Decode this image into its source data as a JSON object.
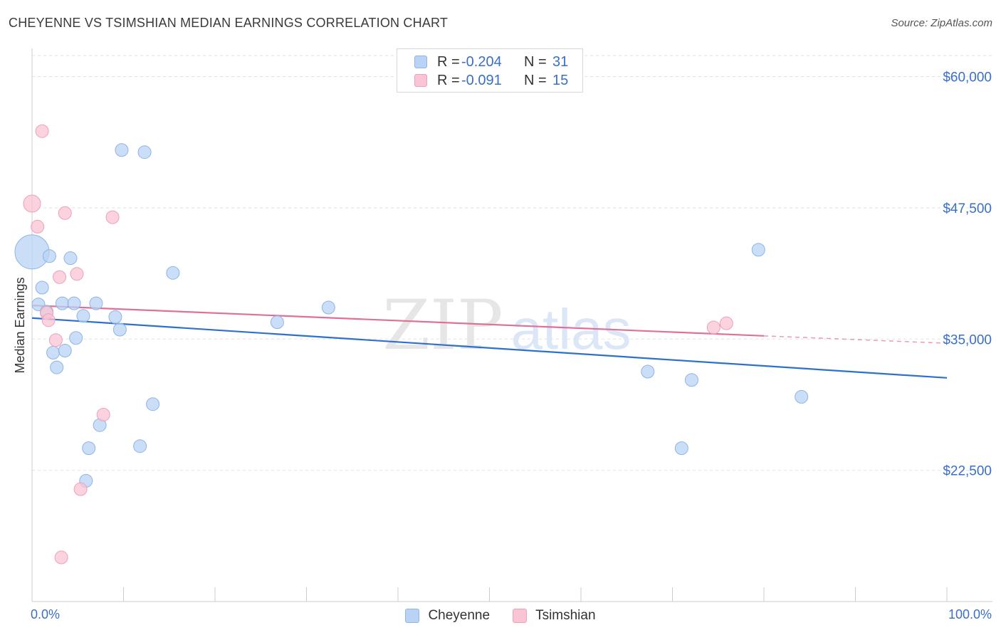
{
  "header": {
    "title": "CHEYENNE VS TSIMSHIAN MEDIAN EARNINGS CORRELATION CHART",
    "source": "Source: ZipAtlas.com"
  },
  "watermark": {
    "zip": "ZIP",
    "atlas": "atlas"
  },
  "colors": {
    "cheyenne_fill": "#b8d3f4",
    "cheyenne_stroke": "#8fb4e6",
    "cheyenne_line": "#2f6fcd",
    "tsimshian_fill": "#f9c4d4",
    "tsimshian_stroke": "#eea0b8",
    "tsimshian_line": "#e0709a",
    "tick_label": "#3a6fc7",
    "grid": "#e3e3e3"
  },
  "legend": {
    "rows": [
      {
        "series": "Cheyenne",
        "r_label": "R =",
        "r_value": "-0.204",
        "n_label": "N =",
        "n_value": "31"
      },
      {
        "series": "Tsimshian",
        "r_label": "R =",
        "r_value": "-0.091",
        "n_label": "N =",
        "n_value": "15"
      }
    ]
  },
  "chart_data": {
    "type": "scatter",
    "title": "CHEYENNE VS TSIMSHIAN MEDIAN EARNINGS CORRELATION CHART",
    "xlabel": "",
    "ylabel": "Median Earnings",
    "xlim": [
      0,
      100
    ],
    "ylim": [
      10000,
      62000
    ],
    "x_tick_labels": [
      "0.0%",
      "100.0%"
    ],
    "y_ticks": [
      22500,
      35000,
      47500,
      60000
    ],
    "y_tick_labels": [
      "$22,500",
      "$35,000",
      "$47,500",
      "$60,000"
    ],
    "grid": true,
    "legend_position": "top-center",
    "series": [
      {
        "name": "Cheyenne",
        "points": [
          [
            0,
            43300,
            24
          ],
          [
            0.7,
            38300,
            9
          ],
          [
            1.1,
            39900,
            9
          ],
          [
            1.6,
            37600,
            9
          ],
          [
            1.9,
            42900,
            9
          ],
          [
            2.3,
            33700,
            9
          ],
          [
            2.7,
            32300,
            9
          ],
          [
            3.3,
            38400,
            9
          ],
          [
            3.6,
            33900,
            9
          ],
          [
            4.2,
            42700,
            9
          ],
          [
            4.6,
            38400,
            9
          ],
          [
            4.8,
            35100,
            9
          ],
          [
            5.6,
            37200,
            9
          ],
          [
            6.2,
            24600,
            9
          ],
          [
            5.9,
            21500,
            9
          ],
          [
            7.0,
            38400,
            9
          ],
          [
            7.4,
            26800,
            9
          ],
          [
            9.1,
            37100,
            9
          ],
          [
            9.6,
            35900,
            9
          ],
          [
            9.8,
            53000,
            9
          ],
          [
            11.8,
            24800,
            9
          ],
          [
            12.3,
            52800,
            9
          ],
          [
            13.2,
            28800,
            9
          ],
          [
            15.4,
            41300,
            9
          ],
          [
            26.8,
            36600,
            9
          ],
          [
            32.4,
            38000,
            9
          ],
          [
            67.3,
            31900,
            9
          ],
          [
            71.0,
            24600,
            9
          ],
          [
            72.1,
            31100,
            9
          ],
          [
            79.4,
            43500,
            9
          ],
          [
            84.1,
            29500,
            9
          ]
        ],
        "trend": {
          "x": [
            0,
            100
          ],
          "y": [
            37000,
            31300
          ]
        }
      },
      {
        "name": "Tsimshian",
        "points": [
          [
            0,
            47900,
            12
          ],
          [
            0.6,
            45700,
            9
          ],
          [
            1.1,
            54800,
            9
          ],
          [
            1.6,
            37500,
            9
          ],
          [
            1.8,
            36800,
            9
          ],
          [
            2.6,
            34900,
            9
          ],
          [
            3.0,
            40900,
            9
          ],
          [
            3.2,
            14200,
            9
          ],
          [
            3.6,
            47000,
            9
          ],
          [
            4.9,
            41200,
            9
          ],
          [
            5.3,
            20700,
            9
          ],
          [
            7.8,
            27800,
            9
          ],
          [
            8.8,
            46600,
            9
          ],
          [
            74.5,
            36100,
            9
          ],
          [
            75.9,
            36500,
            9
          ]
        ],
        "trend": {
          "x": [
            0,
            80
          ],
          "y": [
            38200,
            35300
          ]
        },
        "trend_dashed": {
          "x": [
            80,
            100
          ],
          "y": [
            35300,
            34600
          ]
        }
      }
    ]
  }
}
